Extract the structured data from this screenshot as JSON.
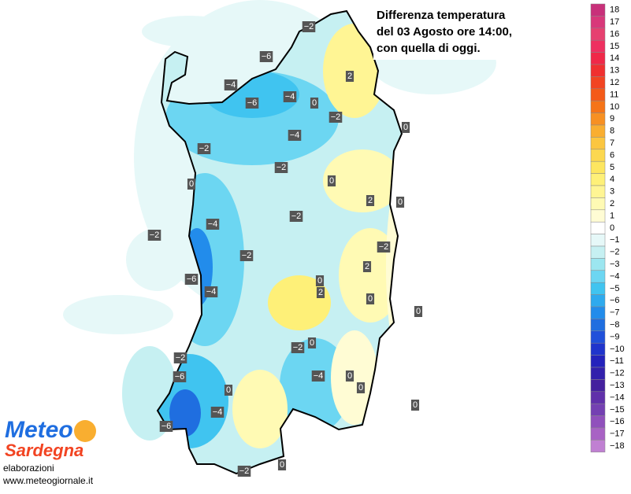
{
  "title": {
    "lines": [
      "Differenza temperatura",
      "del 03 Agosto ore 14:00,",
      "con quella di oggi."
    ]
  },
  "legend": {
    "entries": [
      {
        "label": "18",
        "color": "#c8307a"
      },
      {
        "label": "17",
        "color": "#d8387a"
      },
      {
        "label": "16",
        "color": "#e64070"
      },
      {
        "label": "15",
        "color": "#ee3060"
      },
      {
        "label": "14",
        "color": "#f02848"
      },
      {
        "label": "13",
        "color": "#f03030"
      },
      {
        "label": "12",
        "color": "#f24422"
      },
      {
        "label": "11",
        "color": "#f45a18"
      },
      {
        "label": "10",
        "color": "#f57418"
      },
      {
        "label": "9",
        "color": "#f79022"
      },
      {
        "label": "8",
        "color": "#f9ae30"
      },
      {
        "label": "7",
        "color": "#fbc640"
      },
      {
        "label": "6",
        "color": "#fcd850"
      },
      {
        "label": "5",
        "color": "#fde660"
      },
      {
        "label": "4",
        "color": "#fef078"
      },
      {
        "label": "3",
        "color": "#fff594"
      },
      {
        "label": "2",
        "color": "#fffab4"
      },
      {
        "label": "1",
        "color": "#fffcd4"
      },
      {
        "label": "0",
        "color": "#ffffff"
      },
      {
        "label": "−1",
        "color": "#e6f8f8"
      },
      {
        "label": "−2",
        "color": "#c6f0f2"
      },
      {
        "label": "−3",
        "color": "#9ce6f0"
      },
      {
        "label": "−4",
        "color": "#6cd6f2"
      },
      {
        "label": "−5",
        "color": "#40c4f0"
      },
      {
        "label": "−6",
        "color": "#2eaaee"
      },
      {
        "label": "−7",
        "color": "#228ceb"
      },
      {
        "label": "−8",
        "color": "#1f6ee0"
      },
      {
        "label": "−9",
        "color": "#2050da"
      },
      {
        "label": "−10",
        "color": "#2034cc"
      },
      {
        "label": "−11",
        "color": "#2422bc"
      },
      {
        "label": "−12",
        "color": "#3220ac"
      },
      {
        "label": "−13",
        "color": "#44209e"
      },
      {
        "label": "−14",
        "color": "#6030aa"
      },
      {
        "label": "−15",
        "color": "#7440b2"
      },
      {
        "label": "−16",
        "color": "#9050bc"
      },
      {
        "label": "−17",
        "color": "#a862c4"
      },
      {
        "label": "−18",
        "color": "#c080d2"
      }
    ]
  },
  "map_labels": [
    "−2",
    "−6",
    "2",
    "−4",
    "−6",
    "−4",
    "0",
    "−2",
    "0",
    "−2",
    "−4",
    "−2",
    "0",
    "0",
    "2",
    "0",
    "−2",
    "−4",
    "−2",
    "−2",
    "−2",
    "2",
    "−6",
    "0",
    "2",
    "−4",
    "0",
    "0",
    "0",
    "−2",
    "−2",
    "−6",
    "−4",
    "0",
    "0",
    "0",
    "0",
    "−4",
    "−6",
    "−2",
    "0"
  ],
  "logo": {
    "line1": "Meteo",
    "line2": "Sardegna"
  },
  "footer": {
    "credit": "elaborazioni",
    "url": "www.meteogiornale.it"
  }
}
